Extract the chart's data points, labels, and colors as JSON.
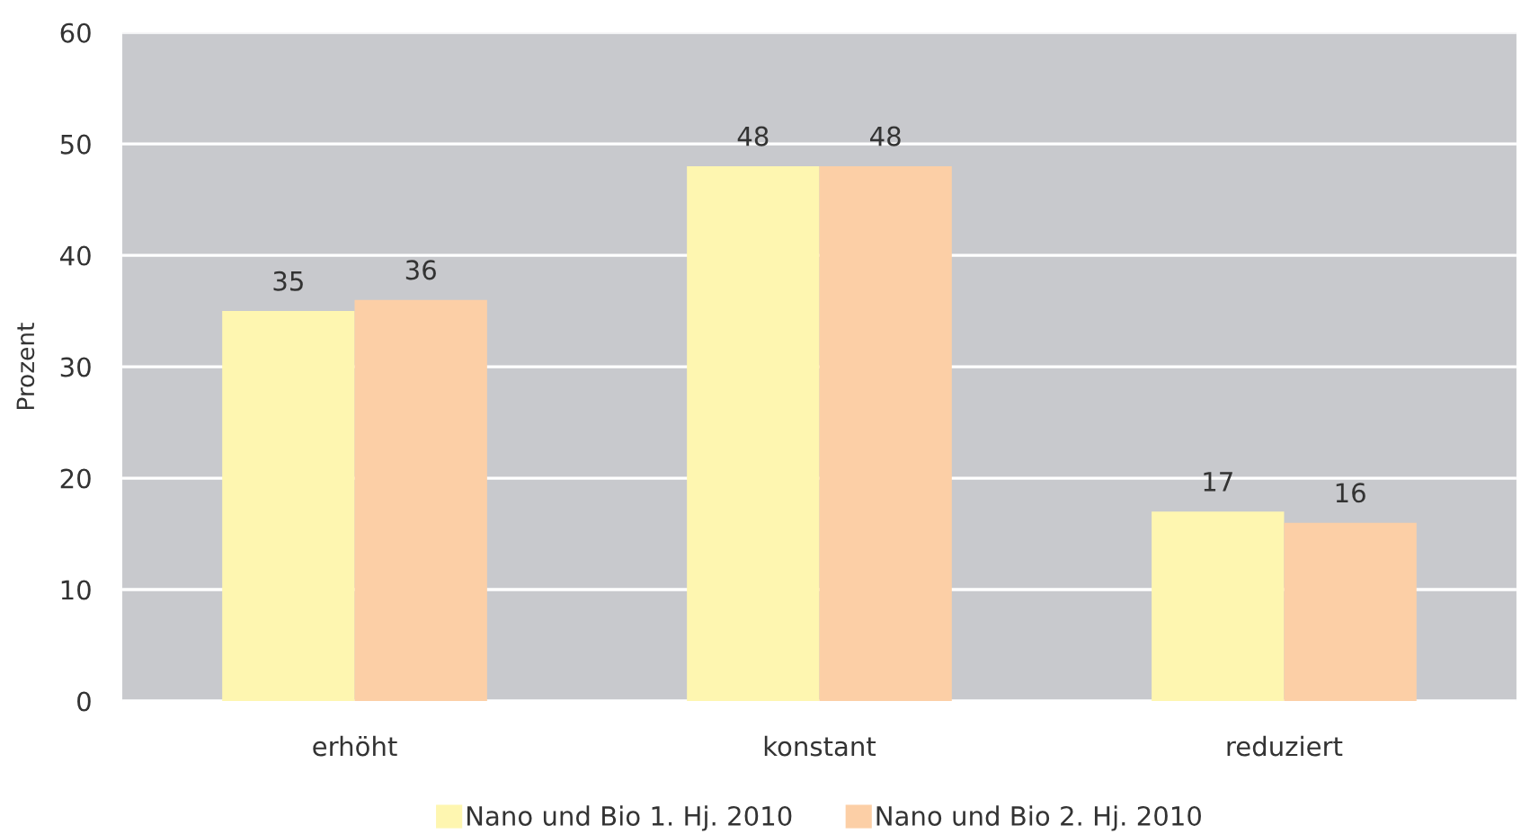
{
  "chart_data": {
    "type": "bar",
    "ylabel": "Prozent",
    "categories": [
      "erhöht",
      "konstant",
      "reduziert"
    ],
    "series": [
      {
        "name": "Nano und Bio 1. Hj. 2010",
        "color": "#fef6b0",
        "values": [
          35,
          48,
          17
        ]
      },
      {
        "name": "Nano und Bio 2. Hj. 2010",
        "color": "#fccfa6",
        "values": [
          36,
          48,
          16
        ]
      }
    ],
    "ylim": [
      0,
      60
    ],
    "yticks": [
      0,
      10,
      20,
      30,
      40,
      50,
      60
    ],
    "grid": "y",
    "legend": "bottom",
    "data_labels": true
  }
}
